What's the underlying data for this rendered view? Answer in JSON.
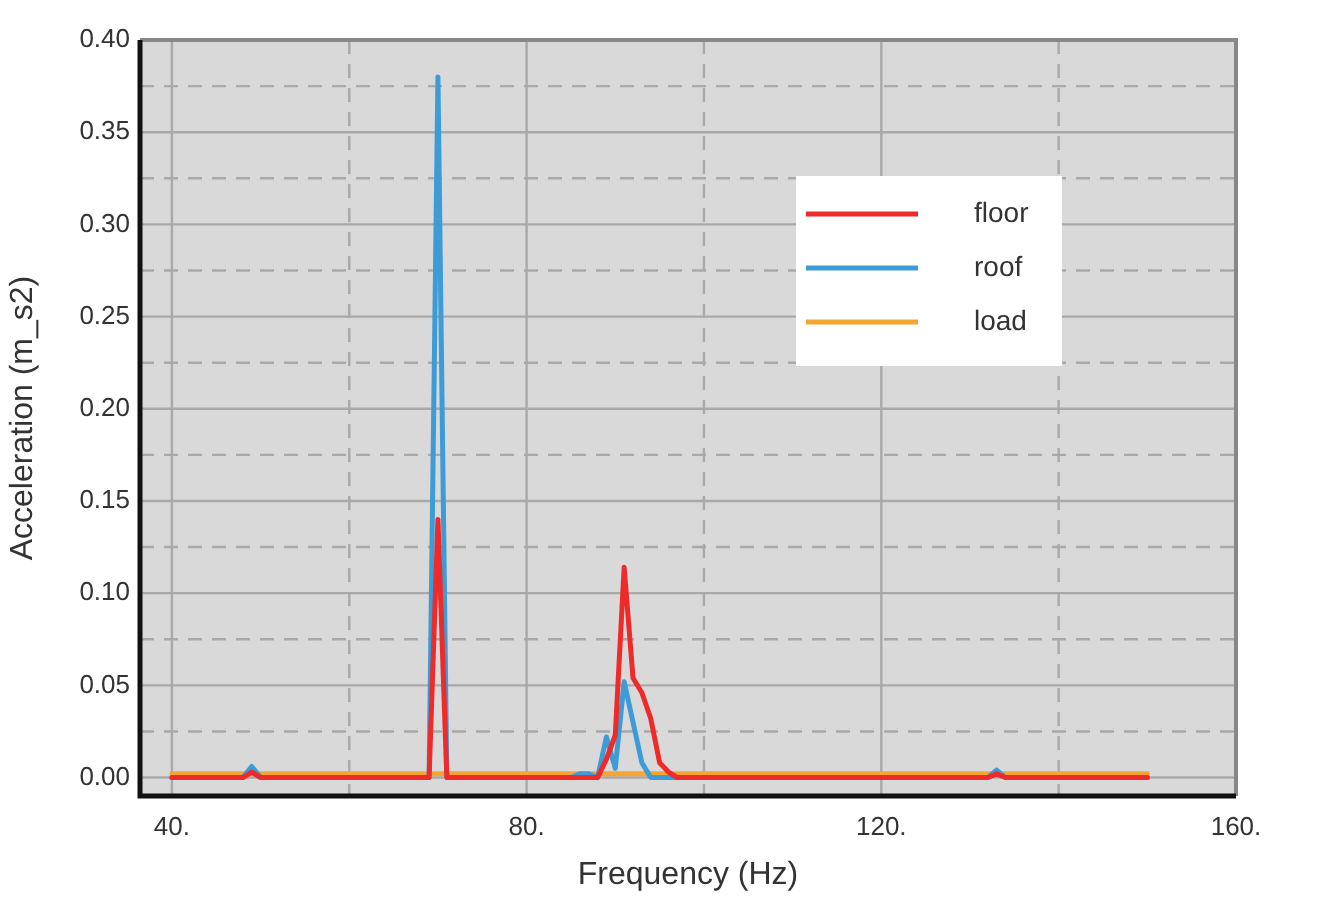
{
  "chart_data": {
    "type": "line",
    "xlabel": "Frequency (Hz)",
    "ylabel": "Acceleration (m_s2)",
    "x": [
      40,
      48,
      49,
      50,
      68,
      69,
      70,
      71,
      72,
      85,
      86,
      87,
      88,
      89,
      90,
      91,
      92,
      93,
      94,
      95,
      96,
      97,
      132,
      133,
      134,
      150
    ],
    "series": [
      {
        "name": "floor",
        "color": "#ee2a2a",
        "values": [
          0,
          0,
          0.003,
          0,
          0,
          0,
          0.14,
          0,
          0,
          0,
          0,
          0,
          0,
          0.01,
          0.023,
          0.114,
          0.054,
          0.046,
          0.032,
          0.008,
          0.003,
          0,
          0,
          0.002,
          0,
          0
        ]
      },
      {
        "name": "roof",
        "color": "#3d9bd6",
        "values": [
          0,
          0,
          0.006,
          0,
          0,
          0,
          0.38,
          0,
          0,
          0,
          0.002,
          0.002,
          0,
          0.022,
          0.005,
          0.052,
          0.03,
          0.008,
          0,
          0,
          0,
          0,
          0,
          0.004,
          0,
          0
        ]
      },
      {
        "name": "load",
        "color": "#f7a531",
        "values": [
          0.002,
          0.002,
          0.002,
          0.002,
          0.002,
          0.002,
          0.002,
          0.002,
          0.002,
          0.002,
          0.002,
          0.002,
          0.002,
          0.002,
          0.002,
          0.002,
          0.002,
          0.002,
          0.002,
          0.002,
          0.002,
          0.002,
          0.002,
          0.002,
          0.002,
          0.002
        ]
      }
    ],
    "xlim": [
      36.4,
      160
    ],
    "xticks": [
      {
        "value": 40,
        "label": "40."
      },
      {
        "value": 60,
        "label": null
      },
      {
        "value": 80,
        "label": "80."
      },
      {
        "value": 100,
        "label": null
      },
      {
        "value": 120,
        "label": "120."
      },
      {
        "value": 140,
        "label": null
      },
      {
        "value": 160,
        "label": "160."
      }
    ],
    "ylim": [
      -0.01,
      0.4
    ],
    "yticks": [
      {
        "value": 0,
        "label": "0.00"
      },
      {
        "value": 0.025,
        "label": null
      },
      0.05,
      {
        "value": 0.075,
        "label": null
      },
      {
        "value": 0.1,
        "label": "0.10"
      },
      {
        "value": 0.125,
        "label": null
      },
      0.15,
      {
        "value": 0.175,
        "label": null
      },
      {
        "value": 0.2,
        "label": "0.20"
      },
      {
        "value": 0.225,
        "label": null
      },
      0.25,
      {
        "value": 0.275,
        "label": null
      },
      {
        "value": 0.3,
        "label": "0.30"
      },
      {
        "value": 0.325,
        "label": null
      },
      0.35,
      {
        "value": 0.375,
        "label": null
      },
      {
        "value": 0.4,
        "label": "0.40"
      }
    ],
    "grid": true,
    "legend": "top right",
    "marker": "none",
    "line_style": "solid"
  }
}
